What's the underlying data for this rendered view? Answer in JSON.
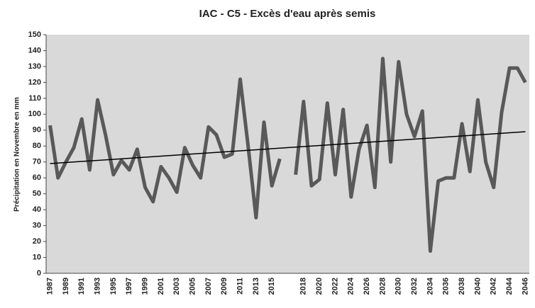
{
  "chart_data": {
    "type": "line",
    "title": "IAC - C5 - Excès d'eau après semis",
    "y_label": "Précipitation en Novembre en mm",
    "categories": [
      "1987",
      null,
      "1989",
      null,
      "1991",
      null,
      "1993",
      null,
      "1995",
      null,
      "1997",
      null,
      "1999",
      null,
      "2001",
      null,
      "2003",
      null,
      "2005",
      null,
      "2007",
      null,
      "2009",
      null,
      "2011",
      null,
      "2013",
      null,
      "2015",
      null,
      null,
      null,
      "2018",
      null,
      "2020",
      null,
      "2022",
      null,
      "2024",
      null,
      "2026",
      null,
      "2028",
      null,
      "2030",
      null,
      "2032",
      null,
      "2034",
      null,
      "2036",
      null,
      "2038",
      null,
      "2040",
      null,
      "2042",
      null,
      "2044",
      null,
      "2046"
    ],
    "values": [
      93,
      60,
      70,
      79,
      97,
      65,
      109,
      87,
      62,
      71,
      65,
      78,
      54,
      45,
      67,
      60,
      51,
      79,
      68,
      60,
      92,
      87,
      73,
      75,
      122,
      80,
      35,
      95,
      55,
      72,
      null,
      62,
      108,
      55,
      59,
      107,
      62,
      103,
      48,
      78,
      93,
      54,
      135,
      70,
      133,
      100,
      86,
      102,
      14,
      58,
      60,
      60,
      94,
      64,
      109,
      70,
      54,
      101,
      129,
      129,
      120
    ],
    "color": "#595959",
    "trend": [
      69,
      89
    ],
    "trend_color": "#000000",
    "ylim": [
      0,
      150
    ],
    "yticks": [
      0,
      10,
      20,
      30,
      40,
      50,
      60,
      70,
      80,
      90,
      100,
      110,
      120,
      130,
      140,
      150
    ],
    "background": "#d9d9d9"
  }
}
